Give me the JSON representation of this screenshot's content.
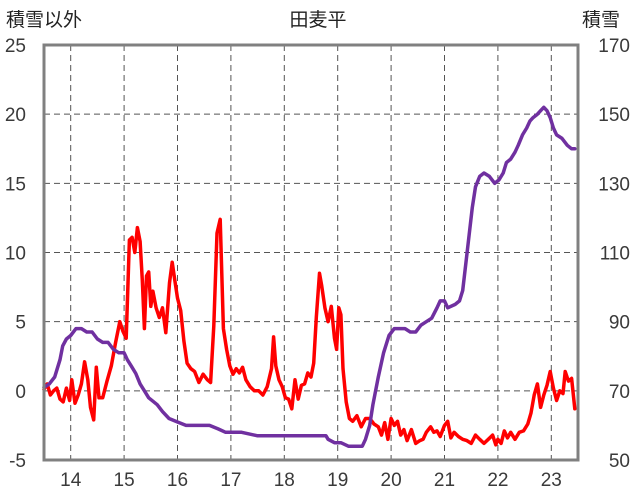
{
  "chart_data": {
    "type": "line",
    "title": "田麦平",
    "ylabel_left": "積雪以外",
    "ylabel_right": "積雪",
    "x_ticks": [
      "14",
      "15",
      "16",
      "17",
      "18",
      "19",
      "20",
      "21",
      "22",
      "23"
    ],
    "y_left_ticks": [
      "-5",
      "0",
      "5",
      "10",
      "15",
      "20",
      "25"
    ],
    "y_right_ticks": [
      "50",
      "70",
      "90",
      "110",
      "130",
      "150",
      "170"
    ],
    "ylim_left": [
      -5,
      25
    ],
    "ylim_right": [
      50,
      170
    ],
    "xlim": [
      13.5,
      23.5
    ],
    "grid": true,
    "series": [
      {
        "axis": "left",
        "color": "#ff0000",
        "points": [
          [
            13.5,
            0.1
          ],
          [
            13.56,
            0.5
          ],
          [
            13.62,
            -0.3
          ],
          [
            13.68,
            0
          ],
          [
            13.74,
            0.2
          ],
          [
            13.8,
            -0.6
          ],
          [
            13.86,
            -0.8
          ],
          [
            13.92,
            0.2
          ],
          [
            13.98,
            -0.7
          ],
          [
            14.02,
            0.8
          ],
          [
            14.08,
            -0.9
          ],
          [
            14.14,
            -0.3
          ],
          [
            14.2,
            0.5
          ],
          [
            14.26,
            2.1
          ],
          [
            14.32,
            0.8
          ],
          [
            14.37,
            -1.2
          ],
          [
            14.43,
            -2.1
          ],
          [
            14.48,
            1.7
          ],
          [
            14.53,
            -0.5
          ],
          [
            14.6,
            -0.5
          ],
          [
            14.68,
            0.7
          ],
          [
            14.76,
            1.8
          ],
          [
            14.84,
            3.5
          ],
          [
            14.92,
            5.0
          ],
          [
            14.98,
            4.3
          ],
          [
            15.04,
            3.8
          ],
          [
            15.1,
            10.9
          ],
          [
            15.15,
            11.1
          ],
          [
            15.2,
            10.0
          ],
          [
            15.25,
            11.8
          ],
          [
            15.3,
            10.8
          ],
          [
            15.34,
            8.0
          ],
          [
            15.38,
            4.5
          ],
          [
            15.42,
            8.3
          ],
          [
            15.46,
            8.6
          ],
          [
            15.5,
            6.1
          ],
          [
            15.54,
            7.2
          ],
          [
            15.6,
            6.0
          ],
          [
            15.66,
            5.3
          ],
          [
            15.72,
            6.0
          ],
          [
            15.78,
            4.2
          ],
          [
            15.85,
            7.8
          ],
          [
            15.9,
            9.3
          ],
          [
            15.95,
            8.0
          ],
          [
            16.0,
            6.7
          ],
          [
            16.06,
            5.8
          ],
          [
            16.12,
            3.6
          ],
          [
            16.18,
            2.0
          ],
          [
            16.25,
            1.6
          ],
          [
            16.32,
            1.4
          ],
          [
            16.4,
            0.6
          ],
          [
            16.48,
            1.2
          ],
          [
            16.56,
            0.8
          ],
          [
            16.62,
            0.6
          ],
          [
            16.68,
            4.7
          ],
          [
            16.74,
            11.4
          ],
          [
            16.8,
            12.4
          ],
          [
            16.86,
            4.5
          ],
          [
            16.92,
            3.0
          ],
          [
            16.98,
            1.8
          ],
          [
            17.04,
            1.2
          ],
          [
            17.1,
            1.6
          ],
          [
            17.16,
            1.3
          ],
          [
            17.22,
            1.7
          ],
          [
            17.28,
            0.8
          ],
          [
            17.36,
            0.3
          ],
          [
            17.44,
            0
          ],
          [
            17.52,
            0
          ],
          [
            17.6,
            -0.3
          ],
          [
            17.68,
            0.3
          ],
          [
            17.76,
            1.6
          ],
          [
            17.8,
            3.9
          ],
          [
            17.84,
            1.8
          ],
          [
            17.9,
            0.8
          ],
          [
            17.96,
            0.3
          ],
          [
            18.02,
            -0.5
          ],
          [
            18.08,
            -0.6
          ],
          [
            18.14,
            -1.3
          ],
          [
            18.2,
            0.8
          ],
          [
            18.26,
            -0.6
          ],
          [
            18.32,
            0.4
          ],
          [
            18.38,
            0.5
          ],
          [
            18.44,
            1.3
          ],
          [
            18.5,
            1.0
          ],
          [
            18.55,
            2.0
          ],
          [
            18.6,
            5.3
          ],
          [
            18.66,
            8.5
          ],
          [
            18.7,
            7.6
          ],
          [
            18.76,
            6.0
          ],
          [
            18.82,
            5.0
          ],
          [
            18.88,
            6.1
          ],
          [
            18.94,
            3.8
          ],
          [
            18.98,
            3.0
          ],
          [
            19.02,
            6.0
          ],
          [
            19.06,
            5.5
          ],
          [
            19.1,
            1.6
          ],
          [
            19.16,
            -0.8
          ],
          [
            19.22,
            -2.0
          ],
          [
            19.28,
            -2.2
          ],
          [
            19.36,
            -1.8
          ],
          [
            19.44,
            -2.6
          ],
          [
            19.52,
            -2.0
          ],
          [
            19.6,
            -2.0
          ],
          [
            19.68,
            -2.4
          ],
          [
            19.76,
            -2.6
          ],
          [
            19.82,
            -3.2
          ],
          [
            19.88,
            -2.3
          ],
          [
            19.94,
            -3.5
          ],
          [
            20.0,
            -2.0
          ],
          [
            20.06,
            -2.5
          ],
          [
            20.12,
            -2.2
          ],
          [
            20.18,
            -3.2
          ],
          [
            20.24,
            -2.8
          ],
          [
            20.3,
            -3.6
          ],
          [
            20.38,
            -2.8
          ],
          [
            20.46,
            -3.8
          ],
          [
            20.54,
            -3.6
          ],
          [
            20.6,
            -3.5
          ],
          [
            20.66,
            -3.0
          ],
          [
            20.74,
            -2.6
          ],
          [
            20.8,
            -3.0
          ],
          [
            20.86,
            -2.9
          ],
          [
            20.92,
            -3.3
          ],
          [
            21.0,
            -2.5
          ],
          [
            21.06,
            -2.2
          ],
          [
            21.12,
            -3.4
          ],
          [
            21.18,
            -3.0
          ],
          [
            21.26,
            -3.3
          ],
          [
            21.34,
            -3.5
          ],
          [
            21.42,
            -3.6
          ],
          [
            21.5,
            -3.8
          ],
          [
            21.58,
            -3.2
          ],
          [
            21.66,
            -3.5
          ],
          [
            21.74,
            -3.8
          ],
          [
            21.82,
            -3.5
          ],
          [
            21.9,
            -3.2
          ],
          [
            21.96,
            -3.9
          ],
          [
            22.0,
            -3.5
          ],
          [
            22.06,
            -3.8
          ],
          [
            22.12,
            -2.9
          ],
          [
            22.18,
            -3.4
          ],
          [
            22.24,
            -3.0
          ],
          [
            22.32,
            -3.5
          ],
          [
            22.4,
            -3.0
          ],
          [
            22.48,
            -2.9
          ],
          [
            22.56,
            -2.4
          ],
          [
            22.62,
            -1.6
          ],
          [
            22.68,
            -0.3
          ],
          [
            22.74,
            0.5
          ],
          [
            22.8,
            -1.2
          ],
          [
            22.86,
            -0.3
          ],
          [
            22.92,
            0.4
          ],
          [
            22.98,
            1.4
          ],
          [
            23.04,
            0.2
          ],
          [
            23.1,
            -0.7
          ],
          [
            23.16,
            0
          ],
          [
            23.22,
            -0.2
          ],
          [
            23.26,
            1.4
          ],
          [
            23.32,
            0.7
          ],
          [
            23.38,
            0.9
          ],
          [
            23.44,
            -1.3
          ]
        ]
      },
      {
        "axis": "right",
        "color": "#7030a0",
        "points": [
          [
            13.5,
            71
          ],
          [
            13.6,
            72
          ],
          [
            13.7,
            74
          ],
          [
            13.8,
            79
          ],
          [
            13.85,
            83
          ],
          [
            13.92,
            85
          ],
          [
            14.0,
            86
          ],
          [
            14.1,
            88
          ],
          [
            14.2,
            88
          ],
          [
            14.3,
            87
          ],
          [
            14.4,
            87
          ],
          [
            14.5,
            85
          ],
          [
            14.6,
            84
          ],
          [
            14.7,
            84
          ],
          [
            14.8,
            82
          ],
          [
            14.9,
            81
          ],
          [
            15.0,
            81
          ],
          [
            15.06,
            79
          ],
          [
            15.14,
            77
          ],
          [
            15.22,
            75
          ],
          [
            15.3,
            72
          ],
          [
            15.38,
            70
          ],
          [
            15.46,
            68
          ],
          [
            15.54,
            67
          ],
          [
            15.62,
            66
          ],
          [
            15.72,
            64
          ],
          [
            15.84,
            62
          ],
          [
            16.0,
            61
          ],
          [
            16.16,
            60
          ],
          [
            16.6,
            60
          ],
          [
            16.76,
            59
          ],
          [
            16.9,
            58
          ],
          [
            17.2,
            58
          ],
          [
            17.5,
            57
          ],
          [
            18.0,
            57
          ],
          [
            18.78,
            57
          ],
          [
            18.82,
            56
          ],
          [
            18.94,
            55
          ],
          [
            19.06,
            55
          ],
          [
            19.2,
            54
          ],
          [
            19.34,
            54
          ],
          [
            19.46,
            54
          ],
          [
            19.52,
            56
          ],
          [
            19.6,
            60
          ],
          [
            19.66,
            66
          ],
          [
            19.76,
            74
          ],
          [
            19.86,
            81
          ],
          [
            19.96,
            86
          ],
          [
            20.06,
            88
          ],
          [
            20.16,
            88
          ],
          [
            20.26,
            88
          ],
          [
            20.36,
            87
          ],
          [
            20.46,
            87
          ],
          [
            20.56,
            89
          ],
          [
            20.66,
            90
          ],
          [
            20.76,
            91
          ],
          [
            20.86,
            94
          ],
          [
            20.92,
            96
          ],
          [
            21.0,
            96
          ],
          [
            21.06,
            94
          ],
          [
            21.2,
            95
          ],
          [
            21.28,
            96
          ],
          [
            21.34,
            99
          ],
          [
            21.4,
            107
          ],
          [
            21.46,
            115
          ],
          [
            21.52,
            123
          ],
          [
            21.58,
            129
          ],
          [
            21.66,
            132
          ],
          [
            21.74,
            133
          ],
          [
            21.84,
            132
          ],
          [
            21.94,
            130
          ],
          [
            22.02,
            131
          ],
          [
            22.1,
            133
          ],
          [
            22.16,
            136
          ],
          [
            22.24,
            137
          ],
          [
            22.32,
            139
          ],
          [
            22.38,
            141
          ],
          [
            22.46,
            144
          ],
          [
            22.54,
            146
          ],
          [
            22.6,
            148
          ],
          [
            22.66,
            149
          ],
          [
            22.74,
            150
          ],
          [
            22.8,
            151
          ],
          [
            22.86,
            152
          ],
          [
            22.92,
            151
          ],
          [
            22.98,
            149
          ],
          [
            23.04,
            146
          ],
          [
            23.1,
            144
          ],
          [
            23.2,
            143
          ],
          [
            23.3,
            141
          ],
          [
            23.38,
            140
          ],
          [
            23.44,
            140
          ]
        ]
      }
    ]
  }
}
